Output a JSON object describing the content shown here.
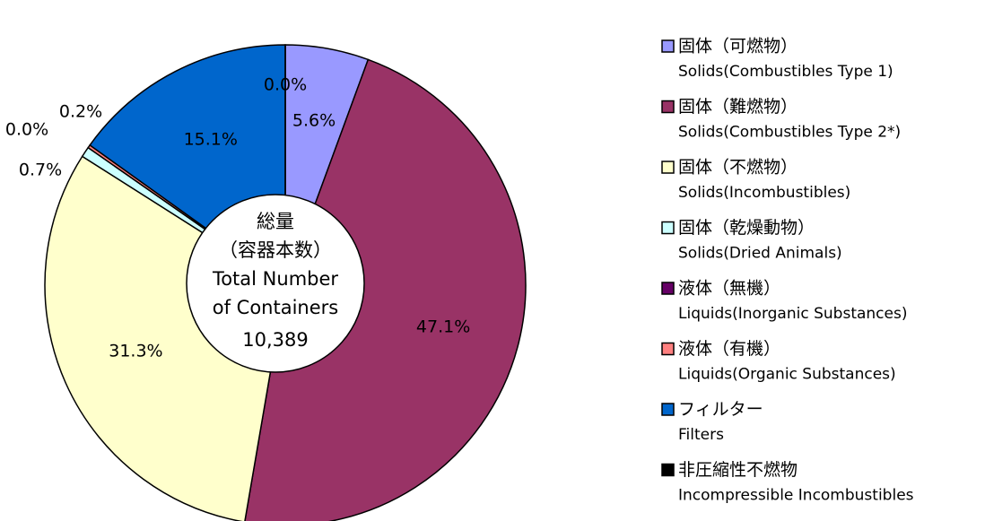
{
  "chart_data": {
    "type": "donut",
    "categories": [
      "固体（可燃物）",
      "固体（難燃物）",
      "固体（不燃物）",
      "固体（乾燥動物）",
      "液体（無機）",
      "液体（有機）",
      "フィルター",
      "非圧縮性不燃物"
    ],
    "categories_en": [
      "Solids(Combustibles Type 1)",
      "Solids(Combustibles Type 2*)",
      "Solids(Incombustibles)",
      "Solids(Dried Animals)",
      "Liquids(Inorganic Substances)",
      "Liquids(Organic Substances)",
      "Filters",
      "Incompressible Incombustibles"
    ],
    "values": [
      5.6,
      47.1,
      31.3,
      0.7,
      0.0,
      0.2,
      15.1,
      0.0
    ],
    "value_labels": [
      "5.6%",
      "47.1%",
      "31.3%",
      "0.7%",
      "0.0%",
      "0.2%",
      "15.1%",
      "0.0%"
    ],
    "colors": [
      "#9999ff",
      "#993366",
      "#ffffcc",
      "#ccffff",
      "#660066",
      "#ff8080",
      "#0066cc",
      "#000000"
    ],
    "center_label": [
      "総量",
      "（容器本数）",
      "Total Number",
      "of Containers"
    ],
    "total": {
      "value": 10389,
      "label": "10,389"
    },
    "legend": "right"
  }
}
